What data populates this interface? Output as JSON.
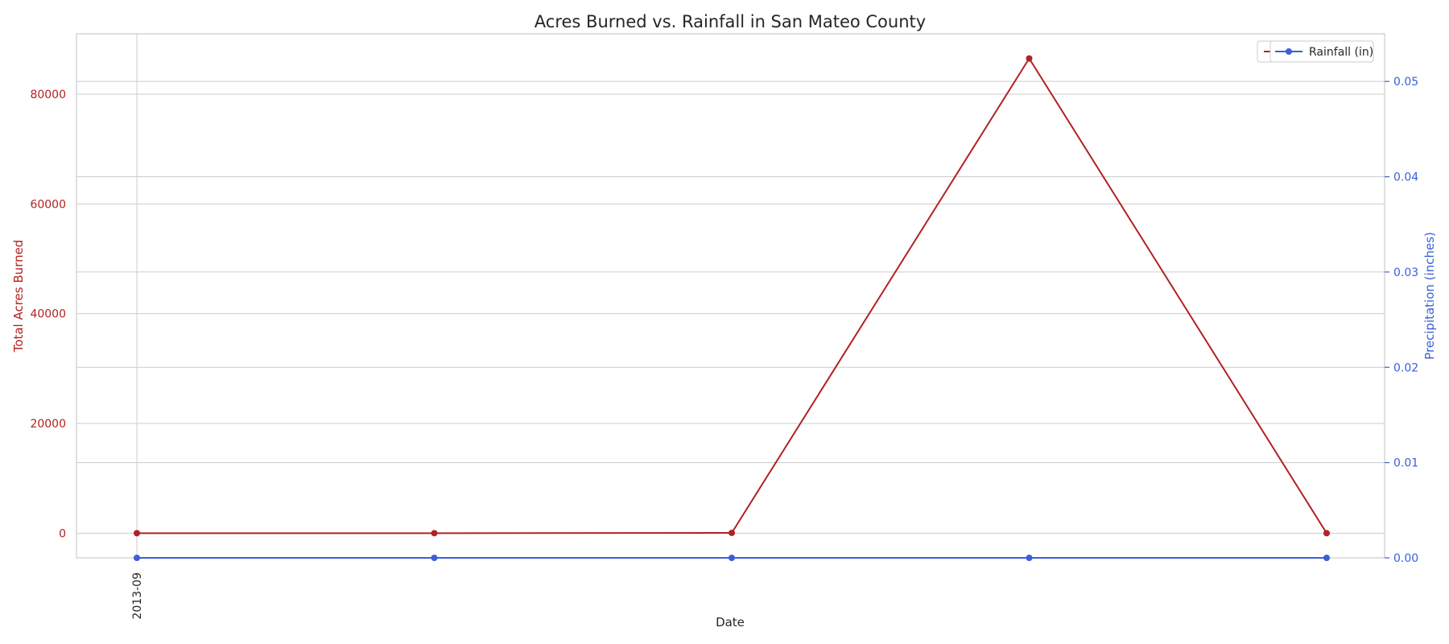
{
  "chart_data": {
    "type": "line",
    "title": "Acres Burned vs. Rainfall in San Mateo County",
    "xlabel": "Date",
    "x": [
      "2013-09",
      "",
      "",
      "",
      ""
    ],
    "left_axis": {
      "label": "Total Acres Burned",
      "color": "#b22222",
      "ylim": [
        -4500,
        91000
      ],
      "ticks": [
        0,
        20000,
        40000,
        60000,
        80000
      ],
      "tick_labels": [
        "0",
        "20000",
        "40000",
        "60000",
        "80000"
      ]
    },
    "right_axis": {
      "label": "Precipitation (inches)",
      "color": "#3b5fd9",
      "ylim": [
        0,
        0.055
      ],
      "ticks": [
        0.0,
        0.01,
        0.02,
        0.03,
        0.04,
        0.05
      ],
      "tick_labels": [
        "0.00",
        "0.01",
        "0.02",
        "0.03",
        "0.04",
        "0.05"
      ]
    },
    "series": [
      {
        "name": "Acres Burned",
        "axis": "left",
        "color": "#b22222",
        "values": [
          0,
          0,
          50,
          86509,
          0
        ]
      },
      {
        "name": "Rainfall (in)",
        "axis": "right",
        "color": "#3b5fd9",
        "values": [
          0,
          0,
          0,
          0,
          0
        ]
      }
    ],
    "legend": {
      "position": "top-right",
      "entries": [
        "Acres Burned",
        "Rainfall (in)"
      ]
    },
    "grid": true
  }
}
